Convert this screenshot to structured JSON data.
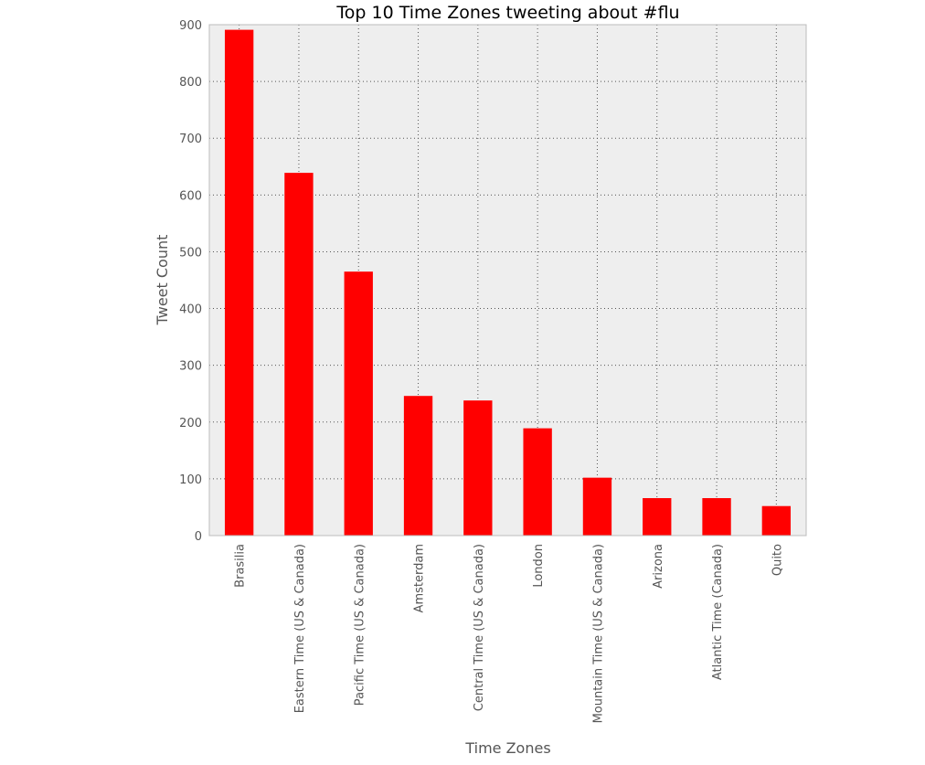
{
  "chart_data": {
    "type": "bar",
    "title": "Top 10 Time Zones tweeting about #flu",
    "xlabel": "Time Zones",
    "ylabel": "Tweet Count",
    "categories": [
      "Brasilia",
      "Eastern Time (US & Canada)",
      "Pacific Time (US & Canada)",
      "Amsterdam",
      "Central Time (US & Canada)",
      "London",
      "Mountain Time (US & Canada)",
      "Arizona",
      "Atlantic Time (Canada)",
      "Quito"
    ],
    "values": [
      891,
      639,
      465,
      246,
      238,
      189,
      102,
      66,
      66,
      52
    ],
    "ylim": [
      0,
      900
    ],
    "yticks": [
      0,
      100,
      200,
      300,
      400,
      500,
      600,
      700,
      800,
      900
    ],
    "grid": true,
    "bar_color": "#ff0000",
    "background_color": "#eeeeee"
  }
}
